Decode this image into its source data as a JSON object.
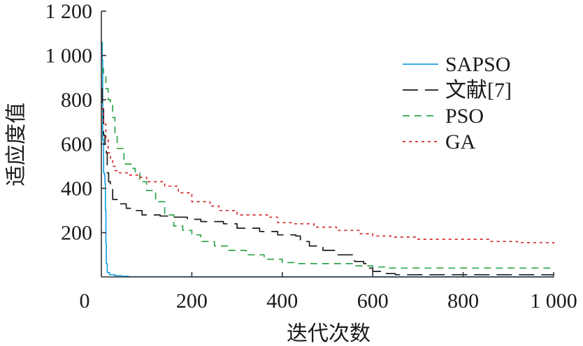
{
  "chart_data": {
    "type": "line",
    "xlabel": "迭代次数",
    "ylabel": "适应度值",
    "xlim": [
      0,
      1000
    ],
    "ylim": [
      0,
      1200
    ],
    "x_ticks": [
      0,
      200,
      400,
      600,
      800,
      1000
    ],
    "x_tick_labels": [
      "0",
      "200",
      "400",
      "600",
      "800",
      "1 000"
    ],
    "y_ticks": [
      200,
      400,
      600,
      800,
      1000,
      1200
    ],
    "y_tick_labels": [
      "200",
      "400",
      "600",
      "800",
      "1 000",
      "1 200"
    ],
    "grid": false,
    "legend_position": "top-right",
    "series": [
      {
        "name": "SAPSO",
        "color": "#1ba1e2",
        "dash": "solid",
        "points": [
          [
            0,
            1060
          ],
          [
            2,
            980
          ],
          [
            3,
            620
          ],
          [
            5,
            470
          ],
          [
            7,
            460
          ],
          [
            8,
            420
          ],
          [
            9,
            300
          ],
          [
            10,
            150
          ],
          [
            11,
            60
          ],
          [
            13,
            20
          ],
          [
            18,
            10
          ],
          [
            30,
            5
          ],
          [
            45,
            3
          ],
          [
            60,
            1
          ],
          [
            100,
            1
          ],
          [
            200,
            0.5
          ],
          [
            1000,
            0.5
          ]
        ]
      },
      {
        "name": "文献[7]",
        "color": "#1a1a1a",
        "dash": "long",
        "points": [
          [
            0,
            850
          ],
          [
            2,
            770
          ],
          [
            5,
            640
          ],
          [
            8,
            590
          ],
          [
            11,
            560
          ],
          [
            13,
            470
          ],
          [
            16,
            430
          ],
          [
            20,
            410
          ],
          [
            25,
            350
          ],
          [
            35,
            330
          ],
          [
            55,
            310
          ],
          [
            70,
            300
          ],
          [
            90,
            280
          ],
          [
            130,
            275
          ],
          [
            150,
            270
          ],
          [
            190,
            260
          ],
          [
            220,
            250
          ],
          [
            270,
            240
          ],
          [
            300,
            220
          ],
          [
            350,
            205
          ],
          [
            390,
            190
          ],
          [
            430,
            185
          ],
          [
            440,
            160
          ],
          [
            460,
            140
          ],
          [
            490,
            120
          ],
          [
            520,
            100
          ],
          [
            560,
            70
          ],
          [
            580,
            60
          ],
          [
            590,
            40
          ],
          [
            600,
            25
          ],
          [
            620,
            15
          ],
          [
            650,
            10
          ],
          [
            1000,
            10
          ]
        ]
      },
      {
        "name": "PSO",
        "color": "#2ca64a",
        "dash": "medium",
        "points": [
          [
            0,
            940
          ],
          [
            5,
            910
          ],
          [
            10,
            850
          ],
          [
            15,
            800
          ],
          [
            20,
            780
          ],
          [
            25,
            720
          ],
          [
            30,
            640
          ],
          [
            35,
            580
          ],
          [
            50,
            510
          ],
          [
            65,
            490
          ],
          [
            75,
            470
          ],
          [
            85,
            430
          ],
          [
            100,
            390
          ],
          [
            120,
            340
          ],
          [
            140,
            280
          ],
          [
            160,
            230
          ],
          [
            180,
            210
          ],
          [
            200,
            190
          ],
          [
            220,
            160
          ],
          [
            250,
            140
          ],
          [
            280,
            120
          ],
          [
            320,
            100
          ],
          [
            360,
            80
          ],
          [
            400,
            65
          ],
          [
            430,
            60
          ],
          [
            560,
            50
          ],
          [
            600,
            45
          ],
          [
            630,
            40
          ],
          [
            1000,
            40
          ]
        ]
      },
      {
        "name": "GA",
        "color": "#d42a2a",
        "dash": "short",
        "points": [
          [
            0,
            760
          ],
          [
            5,
            690
          ],
          [
            10,
            620
          ],
          [
            15,
            560
          ],
          [
            20,
            530
          ],
          [
            25,
            500
          ],
          [
            30,
            480
          ],
          [
            40,
            470
          ],
          [
            60,
            460
          ],
          [
            80,
            450
          ],
          [
            100,
            430
          ],
          [
            140,
            410
          ],
          [
            170,
            380
          ],
          [
            200,
            340
          ],
          [
            240,
            320
          ],
          [
            260,
            300
          ],
          [
            300,
            280
          ],
          [
            370,
            270
          ],
          [
            390,
            245
          ],
          [
            420,
            240
          ],
          [
            470,
            225
          ],
          [
            520,
            210
          ],
          [
            570,
            195
          ],
          [
            600,
            185
          ],
          [
            640,
            180
          ],
          [
            700,
            170
          ],
          [
            860,
            160
          ],
          [
            920,
            155
          ],
          [
            1000,
            150
          ]
        ]
      }
    ]
  }
}
